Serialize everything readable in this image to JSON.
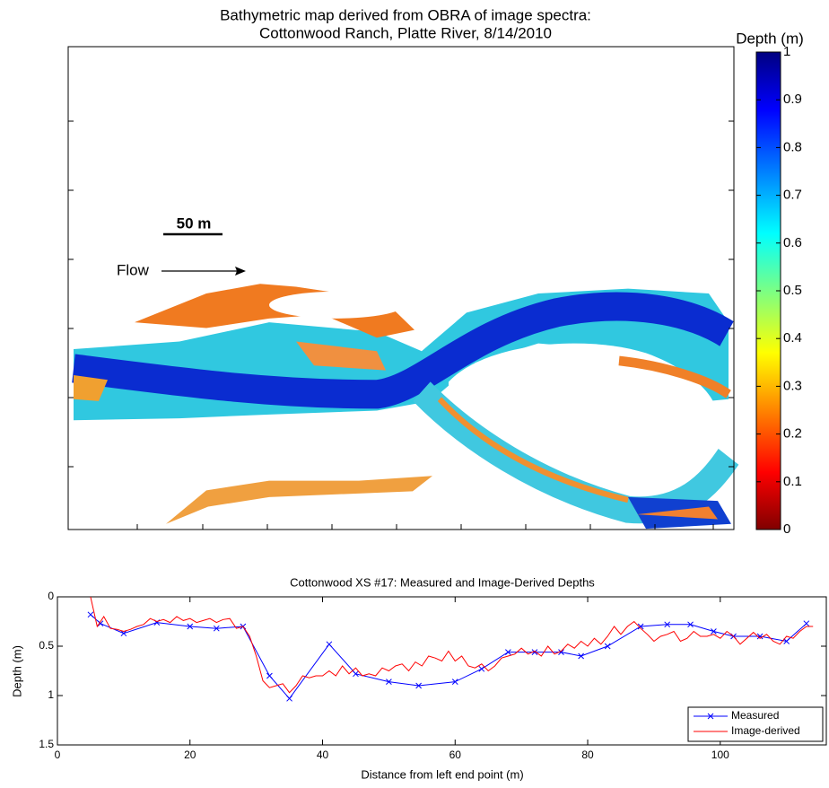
{
  "chart_data": [
    {
      "type": "map",
      "title": [
        "Bathymetric map derived from OBRA of image spectra:",
        "Cottonwood Ranch, Platte River, 8/14/2010"
      ],
      "annotations": [
        "50 m",
        "Flow"
      ],
      "colorbar": {
        "label": "Depth (m)",
        "clim": [
          0,
          1
        ],
        "ticks": [
          0,
          0.1,
          0.2,
          0.3,
          0.4,
          0.5,
          0.6,
          0.7,
          0.8,
          0.9,
          1
        ]
      }
    },
    {
      "type": "line",
      "title": "Cottonwood XS #17: Measured and Image-Derived Depths",
      "xlabel": "Distance from left end point (m)",
      "ylabel": "Depth (m)",
      "xlim": [
        0,
        116
      ],
      "ylim": [
        0,
        1.5
      ],
      "y_reversed": true,
      "xticks": [
        0,
        20,
        40,
        60,
        80,
        100
      ],
      "yticks": [
        0,
        0.5,
        1,
        1.5
      ],
      "legend": "lower right",
      "series": [
        {
          "name": "Measured",
          "color": "#0000ff",
          "marker": "x",
          "x": [
            5,
            6.5,
            10,
            15,
            20,
            24,
            28,
            32,
            35,
            41,
            45,
            50,
            54.5,
            60,
            64,
            68,
            72,
            76,
            79,
            83,
            88,
            92,
            95.5,
            99,
            102,
            106,
            110,
            113
          ],
          "values": [
            0.18,
            0.27,
            0.37,
            0.26,
            0.3,
            0.32,
            0.3,
            0.8,
            1.03,
            0.48,
            0.78,
            0.86,
            0.9,
            0.86,
            0.73,
            0.56,
            0.56,
            0.56,
            0.6,
            0.5,
            0.3,
            0.28,
            0.28,
            0.35,
            0.4,
            0.4,
            0.45,
            0.27
          ]
        },
        {
          "name": "Image-derived",
          "color": "#ff0000",
          "x": [
            5,
            6,
            7,
            8,
            9,
            10,
            11,
            12,
            13,
            14,
            15,
            16,
            17,
            18,
            19,
            20,
            21,
            22,
            23,
            24,
            25,
            26,
            27,
            28,
            29,
            30,
            31,
            32,
            33,
            34,
            35,
            36,
            37,
            38,
            39,
            40,
            41,
            42,
            43,
            44,
            45,
            46,
            47,
            48,
            49,
            50,
            51,
            52,
            53,
            54,
            55,
            56,
            57,
            58,
            59,
            60,
            61,
            62,
            63,
            64,
            65,
            66,
            67,
            68,
            69,
            70,
            71,
            72,
            73,
            74,
            75,
            76,
            77,
            78,
            79,
            80,
            81,
            82,
            83,
            84,
            85,
            86,
            87,
            88,
            89,
            90,
            91,
            92,
            93,
            94,
            95,
            96,
            97,
            98,
            99,
            100,
            101,
            102,
            103,
            104,
            105,
            106,
            107,
            108,
            109,
            110,
            111,
            112,
            113,
            114
          ],
          "values": [
            0.0,
            0.3,
            0.2,
            0.32,
            0.33,
            0.35,
            0.33,
            0.3,
            0.28,
            0.22,
            0.25,
            0.23,
            0.26,
            0.2,
            0.24,
            0.22,
            0.26,
            0.24,
            0.22,
            0.26,
            0.23,
            0.22,
            0.32,
            0.3,
            0.4,
            0.6,
            0.85,
            0.92,
            0.9,
            0.88,
            0.97,
            0.9,
            0.8,
            0.82,
            0.8,
            0.8,
            0.75,
            0.8,
            0.7,
            0.78,
            0.72,
            0.8,
            0.78,
            0.8,
            0.72,
            0.75,
            0.7,
            0.68,
            0.75,
            0.66,
            0.7,
            0.6,
            0.62,
            0.65,
            0.55,
            0.65,
            0.6,
            0.7,
            0.72,
            0.68,
            0.75,
            0.7,
            0.62,
            0.6,
            0.58,
            0.52,
            0.58,
            0.55,
            0.6,
            0.5,
            0.58,
            0.55,
            0.48,
            0.52,
            0.45,
            0.5,
            0.42,
            0.48,
            0.4,
            0.3,
            0.38,
            0.3,
            0.25,
            0.32,
            0.38,
            0.45,
            0.4,
            0.38,
            0.35,
            0.45,
            0.42,
            0.35,
            0.4,
            0.4,
            0.38,
            0.42,
            0.35,
            0.4,
            0.48,
            0.42,
            0.36,
            0.42,
            0.38,
            0.45,
            0.48,
            0.4,
            0.42,
            0.35,
            0.3,
            0.3
          ]
        }
      ]
    }
  ]
}
